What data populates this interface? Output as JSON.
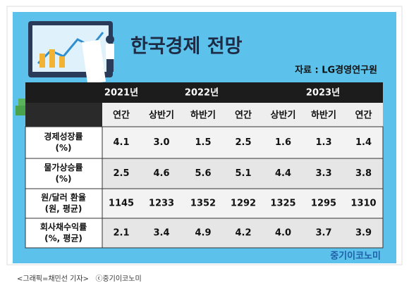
{
  "title": "한국경제 전망",
  "source": "자료 : LG경영연구원",
  "table": {
    "year_headers": [
      {
        "text": "2021년",
        "span": 1
      },
      {
        "text": "2022년",
        "span": 3
      },
      {
        "text": "2023년",
        "span": 3
      }
    ],
    "sub_headers": [
      "연간",
      "상반기",
      "하반기",
      "연간",
      "상반기",
      "하반기",
      "연간"
    ],
    "rows": [
      {
        "label": [
          "경제성장률",
          "(%)"
        ],
        "values": [
          "4.1",
          "3.0",
          "1.5",
          "2.5",
          "1.6",
          "1.3",
          "1.4"
        ]
      },
      {
        "label": [
          "물가상승률",
          "(%)"
        ],
        "values": [
          "2.5",
          "4.6",
          "5.6",
          "5.1",
          "4.4",
          "3.3",
          "3.8"
        ]
      },
      {
        "label": [
          "원/달러 환율",
          "(원, 평균)"
        ],
        "values": [
          "1145",
          "1233",
          "1352",
          "1292",
          "1325",
          "1295",
          "1310"
        ]
      },
      {
        "label": [
          "회사채수익률",
          "(%, 평균)"
        ],
        "values": [
          "2.1",
          "3.4",
          "4.9",
          "4.2",
          "4.0",
          "3.7",
          "3.9"
        ]
      }
    ]
  },
  "brand": "중기이코노미",
  "caption": "<그래픽=채민선 기자>   ⓒ중기이코노미"
}
